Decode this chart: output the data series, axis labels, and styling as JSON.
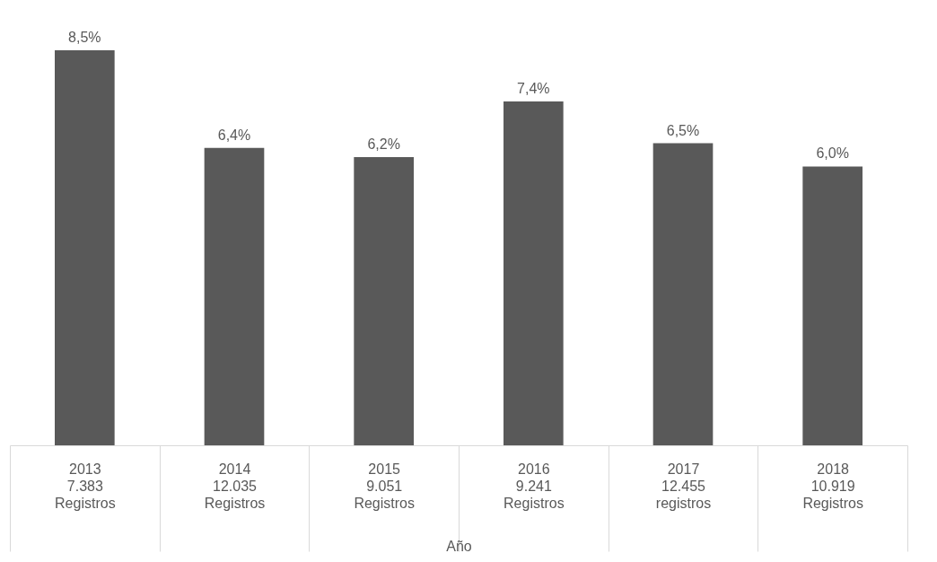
{
  "chart_data": {
    "type": "bar",
    "xlabel": "Año",
    "categories": [
      "2013\n\n7.383\nRegistros",
      "2014\n\n12.035\nRegistros",
      "2015\n\n9.051\nRegistros",
      "2016\n\n9.241\nRegistros",
      "2017\n\n12.455\nregistros",
      "2018\n\n10.919\nRegistros"
    ],
    "values": [
      8.5,
      6.4,
      6.2,
      7.4,
      6.5,
      6.0
    ],
    "value_labels": [
      "8,5%",
      "6,4%",
      "6,2%",
      "7,4%",
      "6,5%",
      "6,0%"
    ],
    "color": "#595959"
  }
}
